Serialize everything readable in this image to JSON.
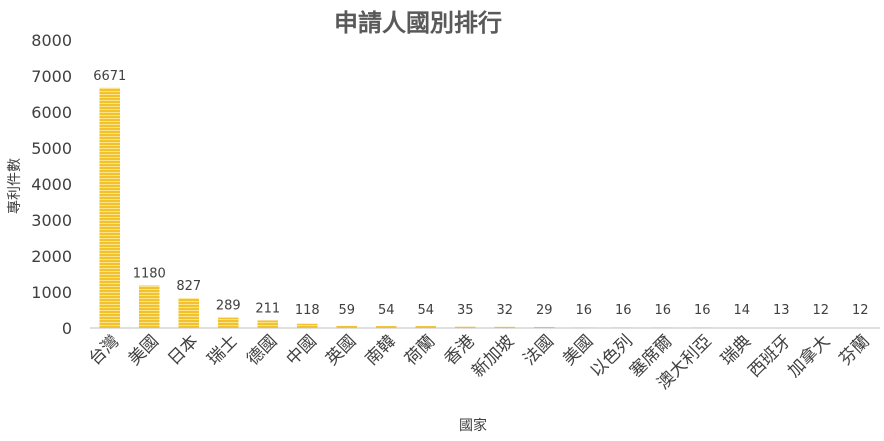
{
  "chart_data": {
    "type": "bar",
    "title": "申請人國別排行",
    "xlabel": "國家",
    "ylabel": "專利件數",
    "ylim": [
      0,
      8000
    ],
    "yticks": [
      0,
      1000,
      2000,
      3000,
      4000,
      5000,
      6000,
      7000,
      8000
    ],
    "grid": false,
    "legend": "none",
    "categories": [
      "台灣",
      "美國",
      "日本",
      "瑞士",
      "德國",
      "中國",
      "英國",
      "南韓",
      "荷蘭",
      "香港",
      "新加坡",
      "法國",
      "美國",
      "以色列",
      "塞席爾",
      "澳大利亞",
      "瑞典",
      "西班牙",
      "加拿大",
      "芬蘭"
    ],
    "values": [
      6671,
      1180,
      827,
      289,
      211,
      118,
      59,
      54,
      54,
      35,
      32,
      29,
      16,
      16,
      16,
      16,
      14,
      13,
      12,
      12
    ],
    "colors": {
      "bar": "#F2C12E",
      "bar_stripe": "#FBE389",
      "axis": "#bfbfbf"
    }
  }
}
